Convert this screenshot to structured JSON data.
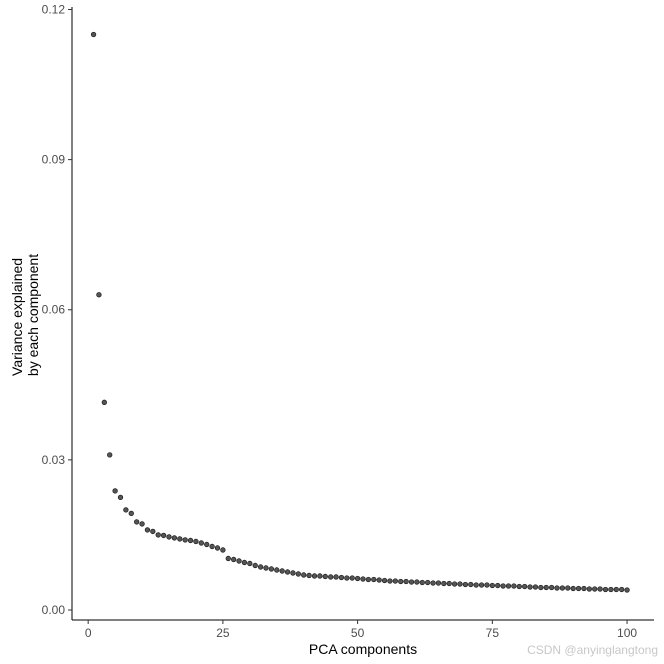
{
  "chart_data": {
    "type": "scatter",
    "title": "",
    "xlabel": "PCA components",
    "ylabel": [
      "Variance explained",
      "by each component"
    ],
    "xlim": [
      -3,
      105
    ],
    "ylim": [
      -0.002,
      0.1205
    ],
    "xticks": [
      0,
      25,
      50,
      75,
      100
    ],
    "yticks": [
      0.0,
      0.03,
      0.06,
      0.09,
      0.12
    ],
    "ytick_labels": [
      "0.00",
      "0.03",
      "0.06",
      "0.09",
      "0.12"
    ],
    "grid": false,
    "legend": "none",
    "point_fill": "#555555",
    "point_stroke": "#1a1a1a",
    "axis_color": "#000000",
    "x": [
      1,
      2,
      3,
      4,
      5,
      6,
      7,
      8,
      9,
      10,
      11,
      12,
      13,
      14,
      15,
      16,
      17,
      18,
      19,
      20,
      21,
      22,
      23,
      24,
      25,
      26,
      27,
      28,
      29,
      30,
      31,
      32,
      33,
      34,
      35,
      36,
      37,
      38,
      39,
      40,
      41,
      42,
      43,
      44,
      45,
      46,
      47,
      48,
      49,
      50,
      51,
      52,
      53,
      54,
      55,
      56,
      57,
      58,
      59,
      60,
      61,
      62,
      63,
      64,
      65,
      66,
      67,
      68,
      69,
      70,
      71,
      72,
      73,
      74,
      75,
      76,
      77,
      78,
      79,
      80,
      81,
      82,
      83,
      84,
      85,
      86,
      87,
      88,
      89,
      90,
      91,
      92,
      93,
      94,
      95,
      96,
      97,
      98,
      99,
      100
    ],
    "y": [
      0.115,
      0.063,
      0.0415,
      0.031,
      0.0238,
      0.0225,
      0.02,
      0.0193,
      0.0176,
      0.0172,
      0.016,
      0.0157,
      0.015,
      0.0149,
      0.0146,
      0.0144,
      0.0142,
      0.014,
      0.0139,
      0.0137,
      0.0134,
      0.0131,
      0.0127,
      0.0124,
      0.012,
      0.0103,
      0.0101,
      0.0098,
      0.0095,
      0.0093,
      0.0089,
      0.0086,
      0.0084,
      0.0082,
      0.008,
      0.0078,
      0.0076,
      0.0074,
      0.0072,
      0.007,
      0.0069,
      0.0068,
      0.0068,
      0.0067,
      0.0066,
      0.0066,
      0.0065,
      0.0064,
      0.0064,
      0.0063,
      0.0062,
      0.0061,
      0.0061,
      0.006,
      0.0059,
      0.0058,
      0.0058,
      0.0057,
      0.0057,
      0.0056,
      0.0056,
      0.0055,
      0.0055,
      0.0054,
      0.0054,
      0.0053,
      0.0053,
      0.0052,
      0.0052,
      0.0051,
      0.0051,
      0.005,
      0.005,
      0.005,
      0.0049,
      0.0049,
      0.0048,
      0.0048,
      0.0048,
      0.0047,
      0.0047,
      0.0046,
      0.0046,
      0.0045,
      0.0045,
      0.0045,
      0.0044,
      0.0044,
      0.0044,
      0.0043,
      0.0043,
      0.0043,
      0.0042,
      0.0042,
      0.0042,
      0.0041,
      0.0041,
      0.0041,
      0.0041,
      0.004
    ]
  },
  "watermark": "CSDN @anyinglangtong"
}
